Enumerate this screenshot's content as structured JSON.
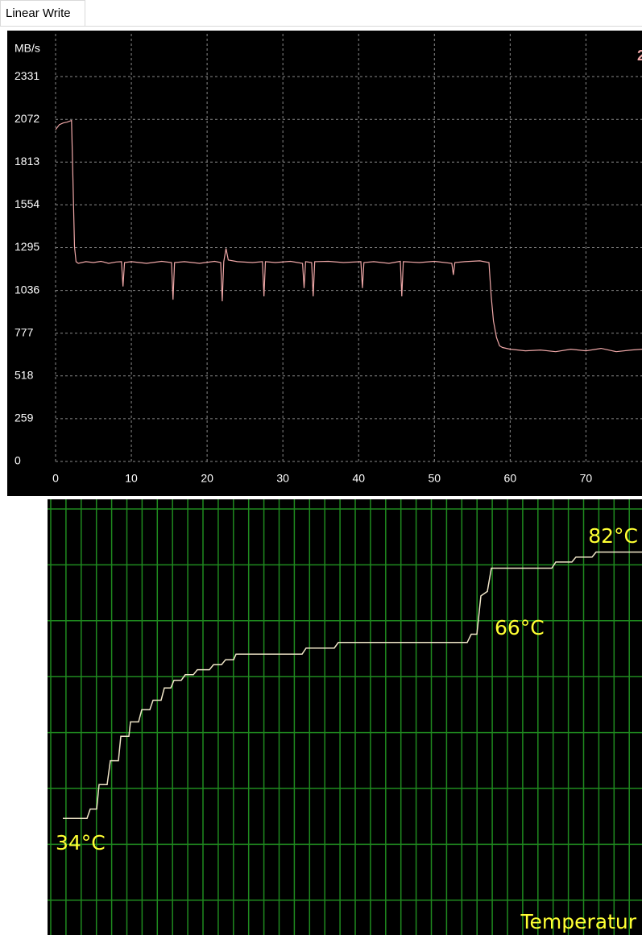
{
  "tab": "Linear Write",
  "chart_data": [
    {
      "type": "line",
      "y_label": "MB/s",
      "annotation": "2",
      "xlim": [
        0,
        77.4
      ],
      "ylim": [
        0,
        2590
      ],
      "xticks": [
        0,
        10,
        20,
        30,
        40,
        50,
        60,
        70
      ],
      "yticks": [
        0,
        259,
        518,
        777,
        1036,
        1295,
        1554,
        1813,
        2072,
        2331
      ],
      "grid": true,
      "series": [
        {
          "color": "#f0a8a8",
          "x": [
            0,
            0.5,
            1,
            1.5,
            2.1,
            2.3,
            2.5,
            2.7,
            3,
            4,
            5,
            6,
            7,
            8,
            8.7,
            8.9,
            9.1,
            10,
            12,
            14,
            15.3,
            15.5,
            15.7,
            17,
            19,
            21,
            21.8,
            22,
            22.2,
            22.5,
            22.8,
            24,
            26,
            27.3,
            27.5,
            27.7,
            29,
            31,
            32.6,
            32.8,
            33,
            33.8,
            34,
            34.2,
            36,
            38,
            40.3,
            40.5,
            40.7,
            42,
            44,
            45.5,
            45.7,
            45.9,
            48,
            50,
            52.3,
            52.5,
            52.7,
            54,
            56,
            57.2,
            57.5,
            57.8,
            58.2,
            58.6,
            59,
            60,
            62,
            64,
            66,
            68,
            70,
            72,
            74,
            76,
            77.5
          ],
          "values": [
            2010,
            2040,
            2050,
            2055,
            2065,
            1700,
            1300,
            1210,
            1200,
            1210,
            1205,
            1212,
            1200,
            1208,
            1210,
            1060,
            1205,
            1210,
            1200,
            1212,
            1205,
            980,
            1205,
            1210,
            1200,
            1212,
            1205,
            970,
            1210,
            1290,
            1220,
            1210,
            1205,
            1210,
            1000,
            1210,
            1205,
            1212,
            1200,
            1050,
            1210,
            1205,
            1000,
            1210,
            1212,
            1205,
            1210,
            1050,
            1205,
            1210,
            1200,
            1212,
            1000,
            1210,
            1205,
            1212,
            1200,
            1130,
            1205,
            1210,
            1215,
            1205,
            1000,
            850,
            750,
            700,
            690,
            680,
            670,
            675,
            665,
            680,
            670,
            685,
            665,
            675,
            680
          ]
        }
      ]
    },
    {
      "type": "line",
      "title": "Temperatur",
      "annotations": [
        "34°C",
        "66°C",
        "82°C"
      ],
      "xlim": [
        0,
        738
      ],
      "ylim": [
        13,
        91.5
      ],
      "series": [
        {
          "color": "#f0e6c8",
          "x": [
            19,
            49,
            53,
            61,
            64,
            74,
            78,
            88,
            91,
            101,
            103,
            113,
            117,
            127,
            131,
            141,
            145,
            153,
            157,
            166,
            171,
            181,
            186,
            201,
            206,
            216,
            221,
            231,
            234,
            316,
            321,
            356,
            361,
            521,
            526,
            533,
            538,
            546,
            551,
            626,
            631,
            651,
            656,
            676,
            681,
            738
          ],
          "values": [
            34,
            34,
            35.7,
            35.7,
            40.1,
            40.1,
            44.4,
            44.4,
            48.8,
            48.8,
            51.4,
            51.4,
            53.6,
            53.6,
            55.3,
            55.3,
            57.5,
            57.5,
            58.9,
            58.9,
            59.9,
            59.9,
            60.8,
            60.8,
            61.7,
            61.7,
            62.6,
            62.6,
            63.6,
            63.6,
            64.7,
            64.7,
            65.7,
            65.7,
            67.2,
            67.2,
            74.1,
            74.9,
            79.1,
            79.1,
            80.2,
            80.2,
            81.1,
            81.1,
            82,
            82
          ]
        }
      ]
    }
  ]
}
